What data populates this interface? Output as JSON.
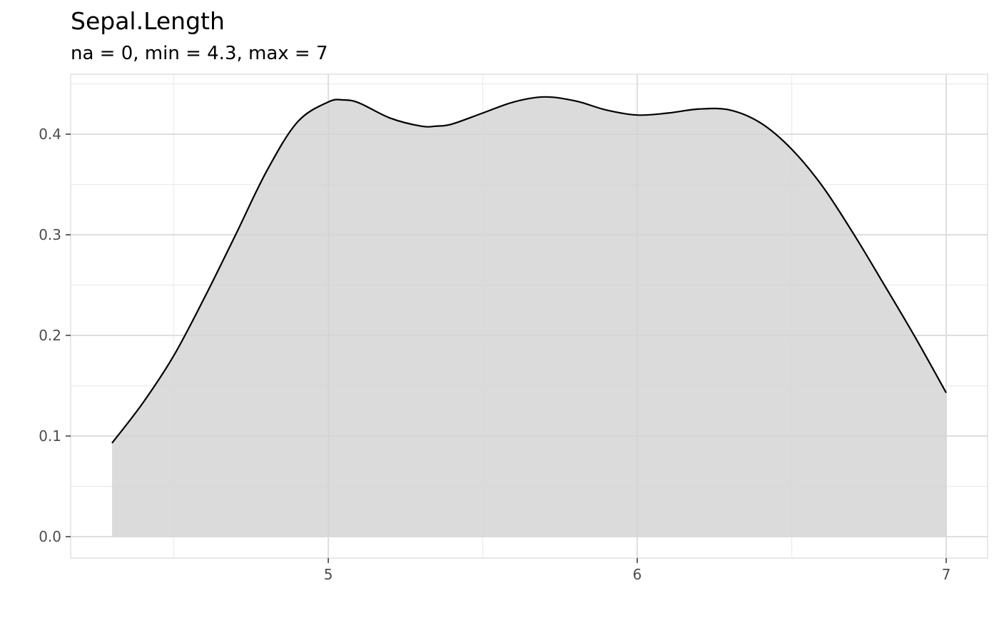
{
  "chart_data": {
    "type": "area",
    "title": "Sepal.Length",
    "subtitle": "na = 0, min = 4.3, max = 7",
    "xlabel": "",
    "ylabel": "",
    "xlim": [
      4.3,
      7
    ],
    "ylim": [
      0,
      0.44
    ],
    "x_major_ticks": [
      5,
      6,
      7
    ],
    "x_minor_ticks": [
      4.5,
      5.5,
      6.5
    ],
    "y_major_ticks": [
      0.0,
      0.1,
      0.2,
      0.3,
      0.4
    ],
    "y_minor_ticks": [
      0.05,
      0.15,
      0.25,
      0.35,
      0.45
    ],
    "x_tick_labels": [
      "5",
      "6",
      "7"
    ],
    "y_tick_labels": [
      "0.0",
      "0.1",
      "0.2",
      "0.3",
      "0.4"
    ],
    "grid": true,
    "legend": "none",
    "fill_color": "#d3d3d3",
    "line_color": "#000000",
    "series": [
      {
        "x": [
          4.3,
          4.4,
          4.5,
          4.6,
          4.7,
          4.8,
          4.9,
          5.0,
          5.05,
          5.1,
          5.2,
          5.3,
          5.35,
          5.4,
          5.5,
          5.6,
          5.7,
          5.8,
          5.9,
          6.0,
          6.1,
          6.2,
          6.3,
          6.4,
          6.5,
          6.6,
          6.7,
          6.8,
          6.9,
          7.0
        ],
        "y": [
          0.093,
          0.133,
          0.18,
          0.238,
          0.3,
          0.363,
          0.412,
          0.432,
          0.434,
          0.431,
          0.416,
          0.408,
          0.408,
          0.41,
          0.421,
          0.432,
          0.437,
          0.433,
          0.424,
          0.419,
          0.421,
          0.425,
          0.424,
          0.411,
          0.385,
          0.348,
          0.301,
          0.25,
          0.198,
          0.143
        ]
      }
    ]
  }
}
